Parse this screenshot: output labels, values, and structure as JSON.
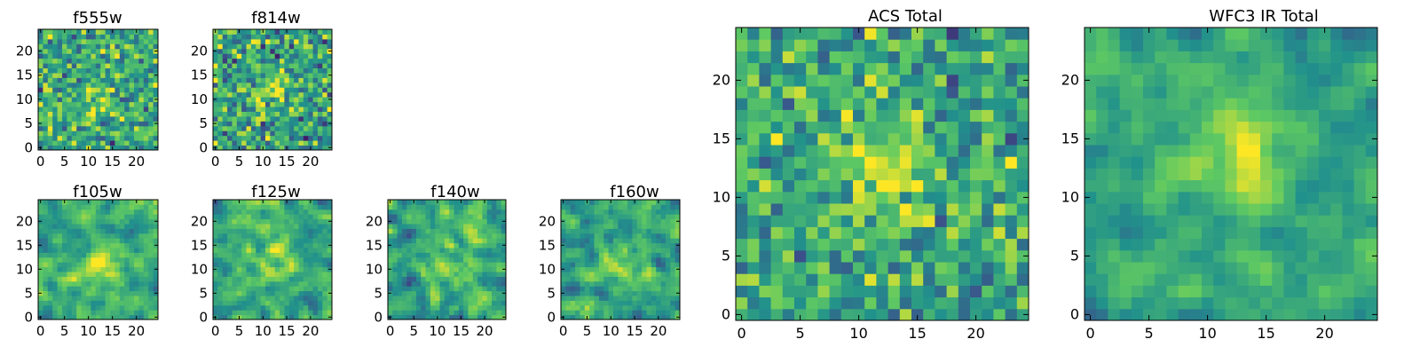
{
  "figure": {
    "panels": [
      {
        "id": "f555w",
        "title": "f555w"
      },
      {
        "id": "f814w",
        "title": "f814w"
      },
      {
        "id": "f105w",
        "title": "f105w"
      },
      {
        "id": "f125w",
        "title": "f125w"
      },
      {
        "id": "f140w",
        "title": "f140w"
      },
      {
        "id": "f160w",
        "title": "f160w"
      },
      {
        "id": "acs_total",
        "title": "ACS Total"
      },
      {
        "id": "wfc3_ir_total",
        "title": "WFC3 IR Total"
      }
    ]
  },
  "colors": {
    "colormap": "viridis",
    "stops": [
      "#440154",
      "#3b528b",
      "#21918c",
      "#5ec962",
      "#fde725"
    ]
  },
  "chart_data": [
    {
      "type": "heatmap",
      "title": "f555w",
      "grid_size": [
        25,
        25
      ],
      "xlim": [
        0,
        24
      ],
      "ylim": [
        0,
        24
      ],
      "xticks": [
        0,
        5,
        10,
        15,
        20
      ],
      "yticks": [
        0,
        5,
        10,
        15,
        20
      ],
      "origin": "lower",
      "colormap": "viridis",
      "seed": 11,
      "mean_level": 0.6,
      "noise": 0.22,
      "smooth": 0,
      "bright_center": [
        12,
        11
      ],
      "bright_strength": 0.15
    },
    {
      "type": "heatmap",
      "title": "f814w",
      "grid_size": [
        25,
        25
      ],
      "xlim": [
        0,
        24
      ],
      "ylim": [
        0,
        24
      ],
      "xticks": [
        0,
        5,
        10,
        15,
        20
      ],
      "yticks": [
        0,
        5,
        10,
        15,
        20
      ],
      "origin": "lower",
      "colormap": "viridis",
      "seed": 23,
      "mean_level": 0.58,
      "noise": 0.24,
      "smooth": 0,
      "bright_center": [
        12,
        12
      ],
      "bright_strength": 0.25
    },
    {
      "type": "heatmap",
      "title": "f105w",
      "grid_size": [
        25,
        25
      ],
      "xlim": [
        0,
        24
      ],
      "ylim": [
        0,
        24
      ],
      "xticks": [
        0,
        5,
        10,
        15,
        20
      ],
      "yticks": [
        0,
        5,
        10,
        15,
        20
      ],
      "origin": "lower",
      "colormap": "viridis",
      "seed": 37,
      "mean_level": 0.62,
      "noise": 0.2,
      "smooth": 1,
      "bright_center": [
        13,
        11
      ],
      "bright_strength": 0.3
    },
    {
      "type": "heatmap",
      "title": "f125w",
      "grid_size": [
        25,
        25
      ],
      "xlim": [
        0,
        24
      ],
      "ylim": [
        0,
        24
      ],
      "xticks": [
        0,
        5,
        10,
        15,
        20
      ],
      "yticks": [
        0,
        5,
        10,
        15,
        20
      ],
      "origin": "lower",
      "colormap": "viridis",
      "seed": 41,
      "mean_level": 0.6,
      "noise": 0.22,
      "smooth": 1,
      "bright_center": [
        12,
        12
      ],
      "bright_strength": 0.25
    },
    {
      "type": "heatmap",
      "title": "f140w",
      "grid_size": [
        25,
        25
      ],
      "xlim": [
        0,
        24
      ],
      "ylim": [
        0,
        24
      ],
      "xticks": [
        0,
        5,
        10,
        15,
        20
      ],
      "yticks": [
        0,
        5,
        10,
        15,
        20
      ],
      "origin": "lower",
      "colormap": "viridis",
      "seed": 53,
      "mean_level": 0.6,
      "noise": 0.24,
      "smooth": 1,
      "bright_center": [
        12,
        11
      ],
      "bright_strength": 0.25
    },
    {
      "type": "heatmap",
      "title": "f160w",
      "grid_size": [
        25,
        25
      ],
      "xlim": [
        0,
        24
      ],
      "ylim": [
        0,
        24
      ],
      "xticks": [
        0,
        5,
        10,
        15,
        20
      ],
      "yticks": [
        0,
        5,
        10,
        15,
        20
      ],
      "origin": "lower",
      "colormap": "viridis",
      "seed": 67,
      "mean_level": 0.6,
      "noise": 0.22,
      "smooth": 1,
      "bright_center": [
        11,
        12
      ],
      "bright_strength": 0.3
    },
    {
      "type": "heatmap",
      "title": "ACS Total",
      "grid_size": [
        25,
        25
      ],
      "xlim": [
        0,
        24
      ],
      "ylim": [
        0,
        24
      ],
      "xticks": [
        0,
        5,
        10,
        15,
        20
      ],
      "yticks": [
        0,
        5,
        10,
        15,
        20
      ],
      "origin": "lower",
      "colormap": "viridis",
      "seed": 79,
      "mean_level": 0.6,
      "noise": 0.2,
      "smooth": 0,
      "bright_center": [
        12,
        12
      ],
      "bright_strength": 0.3
    },
    {
      "type": "heatmap",
      "title": "WFC3 IR Total",
      "grid_size": [
        25,
        25
      ],
      "xlim": [
        0,
        24
      ],
      "ylim": [
        0,
        24
      ],
      "xticks": [
        0,
        5,
        10,
        15,
        20
      ],
      "yticks": [
        0,
        5,
        10,
        15,
        20
      ],
      "origin": "lower",
      "colormap": "viridis",
      "seed": 97,
      "mean_level": 0.58,
      "noise": 0.16,
      "smooth": 1,
      "bright_center": [
        13,
        13
      ],
      "bright_strength": 0.35
    }
  ]
}
